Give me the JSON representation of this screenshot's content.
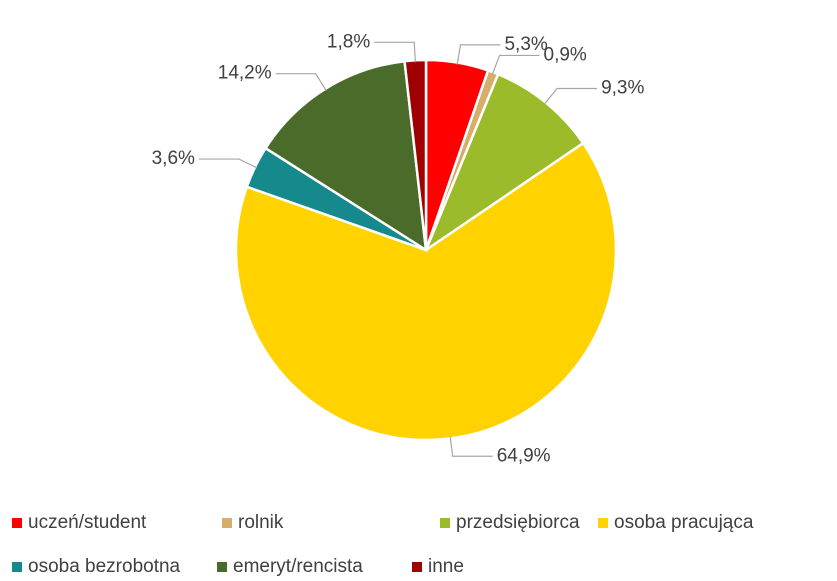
{
  "chart_data": {
    "type": "pie",
    "categories": [
      "uczeń/student",
      "rolnik",
      "przedsiębiorca",
      "osoba pracująca",
      "osoba bezrobotna",
      "emeryt/rencista",
      "inne"
    ],
    "values": [
      5.3,
      0.9,
      9.3,
      64.9,
      3.6,
      14.2,
      1.8
    ],
    "value_labels": [
      "5,3%",
      "0,9%",
      "9,3%",
      "64,9%",
      "3,6%",
      "14,2%",
      "1,8%"
    ],
    "colors": [
      "#ff0000",
      "#d4ae6a",
      "#9bbb2a",
      "#ffd200",
      "#15898b",
      "#4a6b2a",
      "#a00000"
    ],
    "legend": "bottom"
  }
}
